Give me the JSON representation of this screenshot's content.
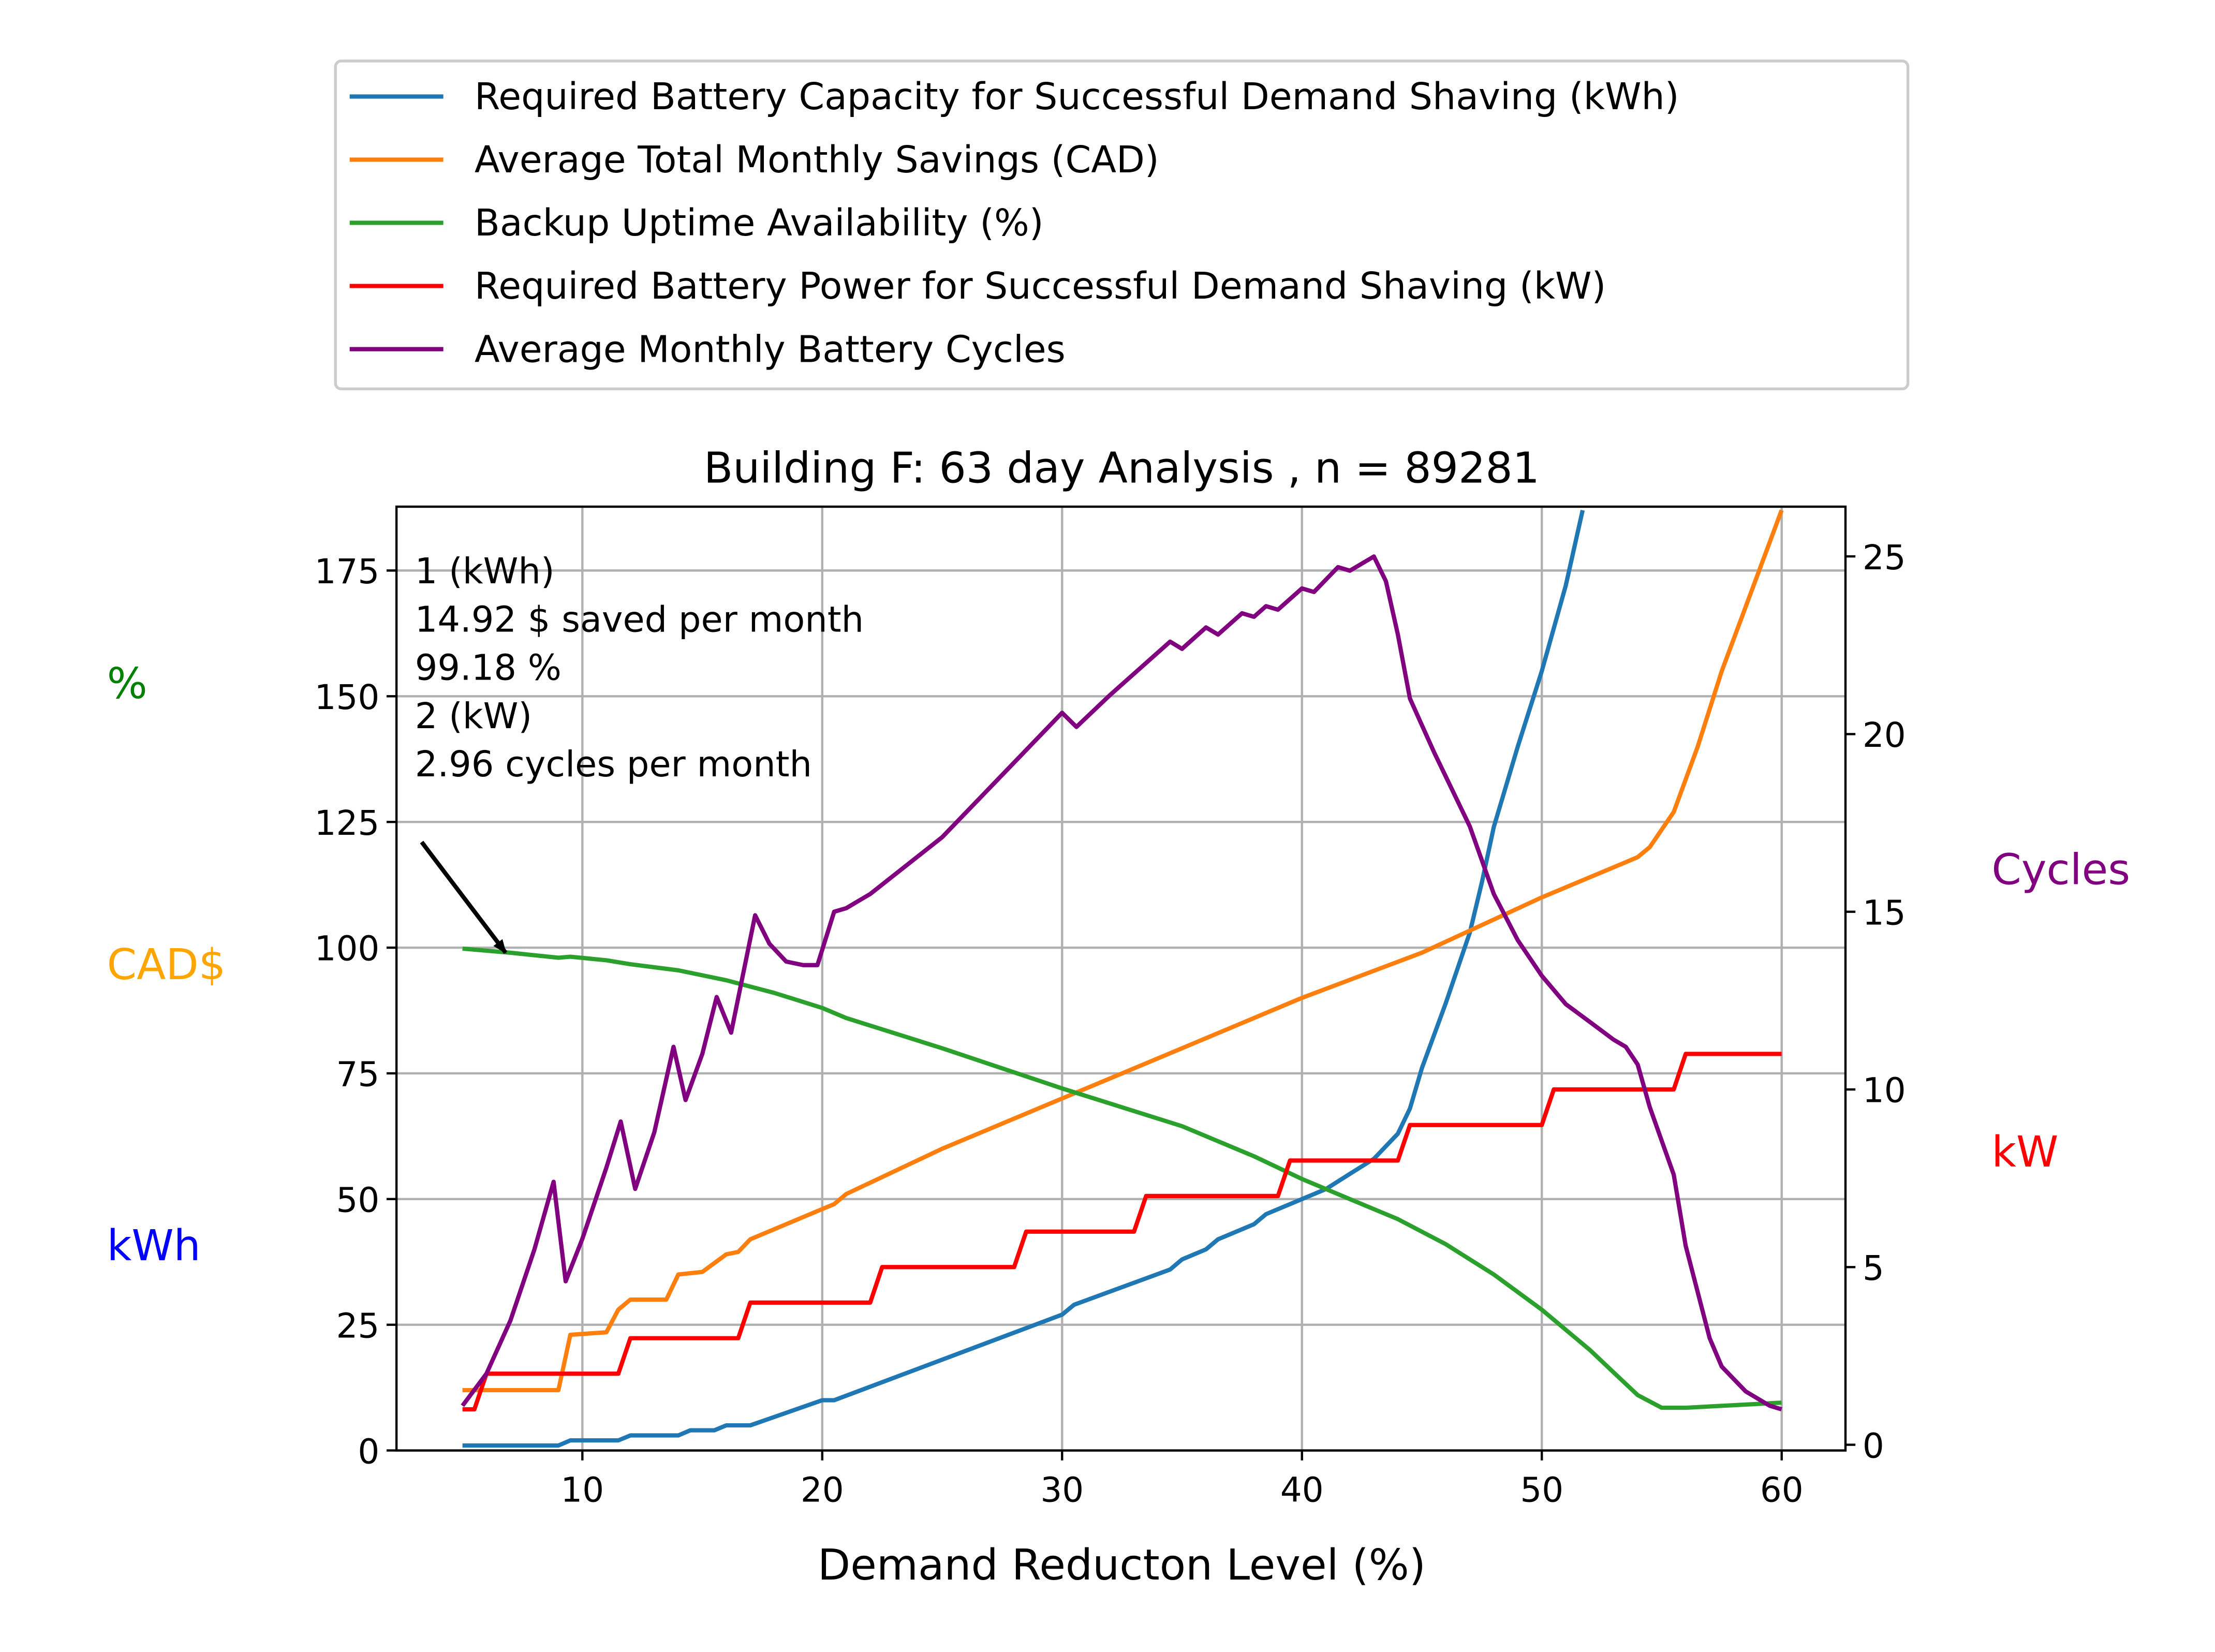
{
  "chart_data": {
    "type": "line",
    "title": "Building F: 63 day Analysis , n = 89281",
    "xlabel": "Demand Reducton Level (%)",
    "xlim": [
      2.25,
      62.66
    ],
    "xticks": [
      10,
      20,
      30,
      40,
      50,
      60
    ],
    "left_axis": {
      "ylim": [
        0,
        187.7
      ],
      "ticks": [
        0,
        25,
        50,
        75,
        100,
        125,
        150,
        175
      ],
      "labels": [
        {
          "text": "%",
          "color": "#008000"
        },
        {
          "text": "CAD$",
          "color": "#FFA500"
        },
        {
          "text": "kWh",
          "color": "#0000FF"
        }
      ]
    },
    "right_axis": {
      "ylim": [
        -0.16,
        26.4
      ],
      "ticks": [
        0,
        5,
        10,
        15,
        20,
        25
      ],
      "labels": [
        {
          "text": "Cycles",
          "color": "#800080"
        },
        {
          "text": "kW",
          "color": "#FF0000"
        }
      ]
    },
    "grid": true,
    "legend_position": "above",
    "series": [
      {
        "name": "Required Battery Capacity for Successful Demand Shaving (kWh)",
        "color": "#1f77b4",
        "axis": "left",
        "x": [
          5,
          9,
          9.5,
          11.5,
          12,
          14,
          14.5,
          15.5,
          16,
          17,
          20,
          20.5,
          30,
          30.5,
          34.5,
          35,
          36,
          36.5,
          38,
          38.5,
          40,
          41,
          42,
          43,
          44,
          44.5,
          45,
          46,
          47,
          47.5,
          48,
          49,
          50,
          51,
          51.7
        ],
        "y": [
          1,
          1,
          2,
          2,
          3,
          3,
          4,
          4,
          5,
          5,
          10,
          10,
          27,
          29,
          36,
          38,
          40,
          42,
          45,
          47,
          50,
          52,
          55,
          58,
          63,
          68,
          76,
          89,
          103,
          113,
          124,
          140,
          155,
          172,
          187
        ]
      },
      {
        "name": "Average Total Monthly Savings (CAD)",
        "color": "#ff7f0e",
        "axis": "left",
        "x": [
          5,
          9,
          9.5,
          11,
          11.5,
          12,
          13.5,
          14,
          15,
          16,
          16.5,
          17,
          20,
          20.5,
          21,
          25,
          30,
          35,
          40,
          45,
          50,
          53.5,
          54,
          54.5,
          55.5,
          56.5,
          57.5,
          60
        ],
        "y": [
          12,
          12,
          23,
          23.5,
          28,
          30,
          30,
          35,
          35.5,
          39,
          39.5,
          42,
          48,
          49,
          51,
          60,
          70,
          80,
          90,
          99,
          110,
          117,
          118,
          120,
          127,
          140,
          155,
          187
        ]
      },
      {
        "name": "Backup Uptime Availability (%)",
        "color": "#2ca02c",
        "axis": "left",
        "x": [
          5,
          7,
          9,
          9.5,
          11,
          12,
          14,
          16,
          18,
          20,
          21,
          25,
          30,
          35,
          38,
          40,
          42,
          44,
          46,
          48,
          50,
          52,
          53,
          54,
          55,
          56,
          58,
          60
        ],
        "y": [
          99.8,
          99,
          98,
          98.2,
          97.5,
          96.7,
          95.5,
          93.5,
          91,
          88,
          86,
          80,
          72,
          64.5,
          58.5,
          54,
          50,
          46,
          41,
          35,
          28,
          20,
          15.5,
          11,
          8.5,
          8.5,
          9,
          9.5
        ]
      },
      {
        "name": "Required Battery Power for Successful Demand Shaving (kW)",
        "color": "#ff0000",
        "axis": "right",
        "x": [
          5,
          5.5,
          6,
          11.5,
          12,
          16.5,
          17,
          22,
          22.5,
          28,
          28.5,
          33,
          33.5,
          39,
          39.5,
          44,
          44.5,
          50,
          50.5,
          55.5,
          56,
          60
        ],
        "y": [
          1,
          1,
          2,
          2,
          3,
          3,
          4,
          4,
          5,
          5,
          6,
          6,
          7,
          7,
          8,
          8,
          9,
          9,
          10,
          10,
          11,
          11
        ]
      },
      {
        "name": "Average Monthly Battery Cycles",
        "color": "#800080",
        "axis": "right",
        "x": [
          5,
          6,
          7,
          8,
          8.8,
          9.3,
          10,
          11,
          11.6,
          12.2,
          13,
          13.8,
          14.3,
          15,
          15.6,
          16.2,
          17.2,
          17.8,
          18.5,
          19.2,
          19.8,
          20.5,
          21,
          22,
          25,
          30,
          30.6,
          32,
          34.5,
          35,
          36,
          36.5,
          37.5,
          38,
          38.5,
          39,
          40,
          40.5,
          41.5,
          42,
          43,
          43.5,
          44,
          44.5,
          45.5,
          47,
          48,
          49,
          50,
          51,
          52,
          53,
          53.5,
          54,
          54.5,
          55.5,
          56,
          57,
          57.5,
          58.5,
          59.5,
          60
        ],
        "y": [
          1.1,
          2,
          3.5,
          5.5,
          7.4,
          4.6,
          5.8,
          7.8,
          9.1,
          7.2,
          8.8,
          11.2,
          9.7,
          11,
          12.6,
          11.6,
          14.9,
          14.1,
          13.6,
          13.5,
          13.5,
          15,
          15.1,
          15.5,
          17.1,
          20.6,
          20.2,
          21.1,
          22.6,
          22.4,
          23,
          22.8,
          23.4,
          23.3,
          23.6,
          23.5,
          24.1,
          24,
          24.7,
          24.6,
          25,
          24.3,
          22.8,
          21,
          19.5,
          17.4,
          15.5,
          14.2,
          13.2,
          12.4,
          11.9,
          11.4,
          11.2,
          10.7,
          9.5,
          7.6,
          5.6,
          3,
          2.2,
          1.5,
          1.1,
          1
        ]
      }
    ],
    "annotation": {
      "lines": [
        "1 (kWh)",
        "14.92 $ saved per month",
        "99.18 %",
        "2 (kW)",
        "2.96 cycles per month"
      ],
      "arrow_from": [
        3.3,
        121
      ],
      "arrow_to": [
        6.8,
        99
      ]
    }
  }
}
